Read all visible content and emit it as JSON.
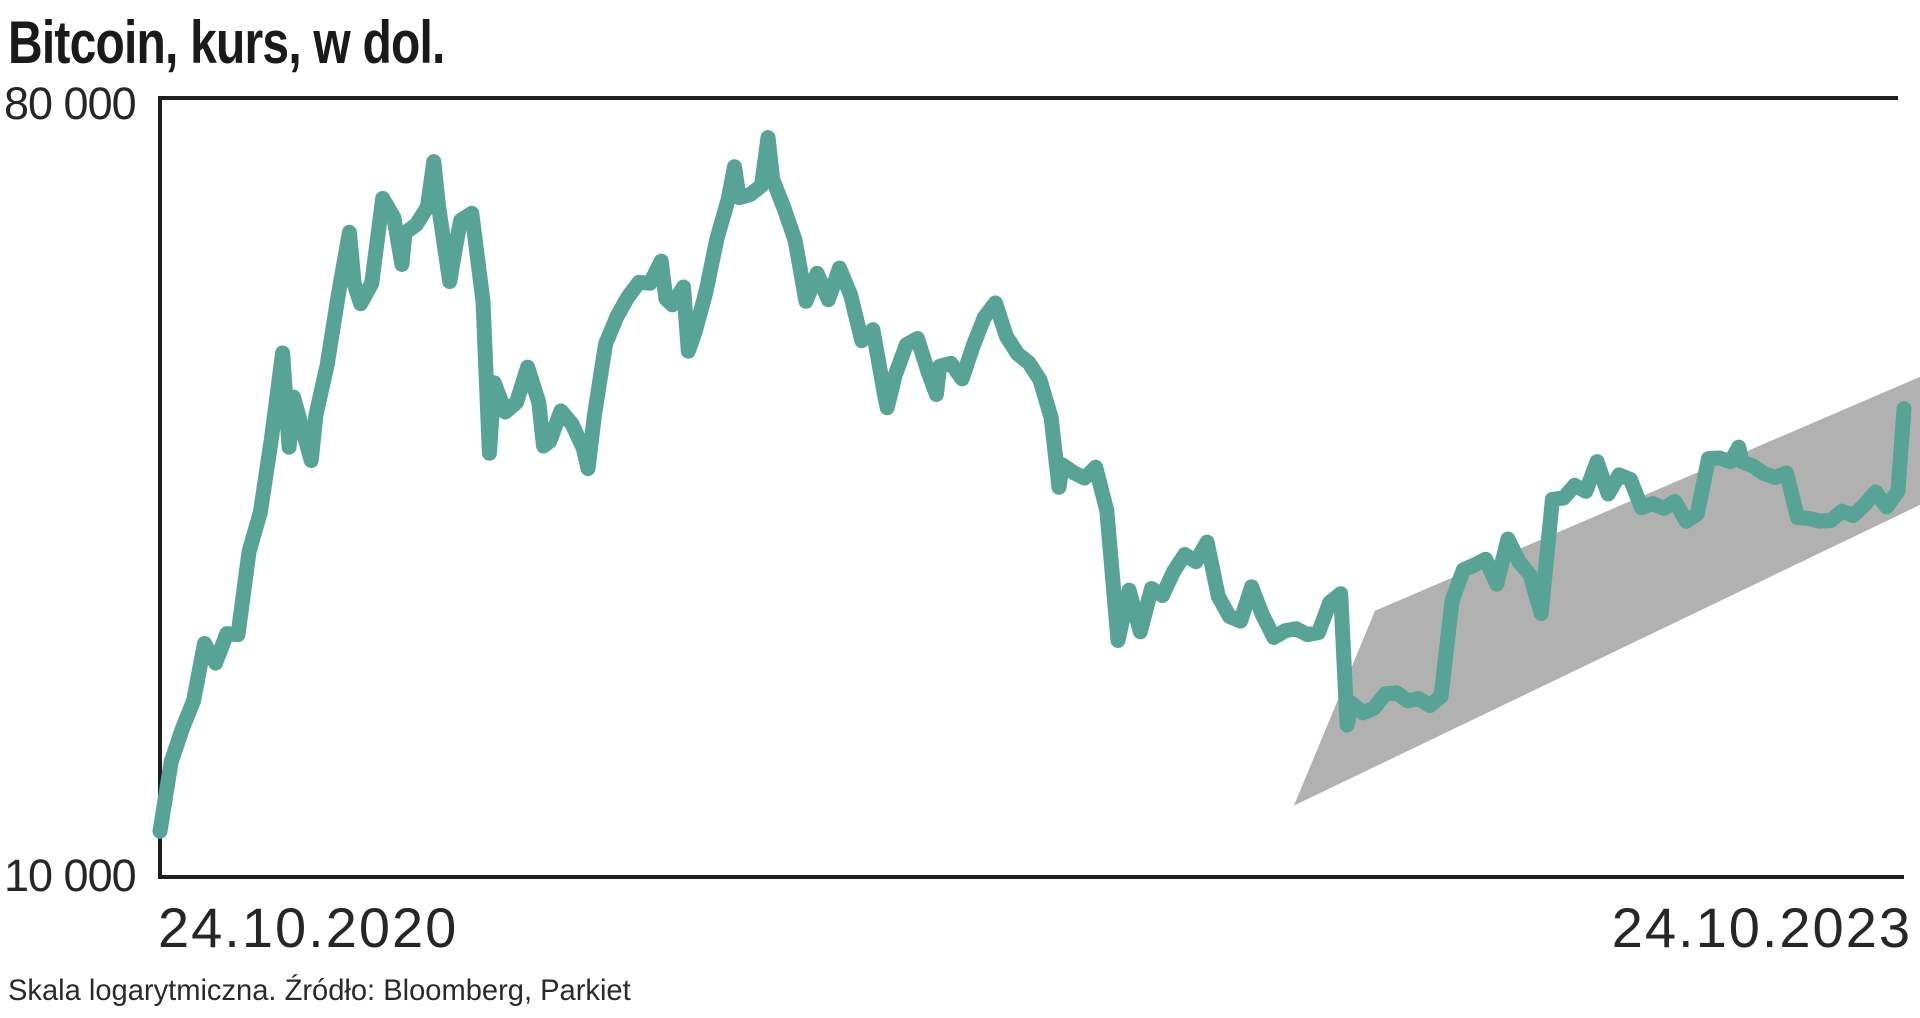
{
  "title": "Bitcoin, kurs, w dol.",
  "footer": "Skala logarytmiczna. Źródło: Bloomberg, Parkiet",
  "y_axis": {
    "top_label": "80 000",
    "bottom_label": "10 000",
    "min": 10000,
    "max": 80000,
    "scale": "log"
  },
  "x_axis": {
    "start_label": "24.10.2020",
    "end_label": "24.10.2023"
  },
  "colors": {
    "line": "#57a497",
    "channel": "#b1b1b1",
    "axis": "#1f1f1f",
    "text": "#262626"
  },
  "chart_data": {
    "type": "line",
    "title": "Bitcoin, kurs, w dol.",
    "ylabel": "USD",
    "yscale": "log",
    "ylim": [
      10000,
      80000
    ],
    "x_range": [
      "24.10.2020",
      "24.10.2023"
    ],
    "grid": false,
    "legend": "none",
    "series": [
      {
        "name": "Bitcoin price (USD)",
        "points": [
          [
            0.0,
            11300
          ],
          [
            0.0064,
            13600
          ],
          [
            0.0128,
            14850
          ],
          [
            0.0192,
            16000
          ],
          [
            0.0255,
            18650
          ],
          [
            0.0319,
            17700
          ],
          [
            0.0383,
            19150
          ],
          [
            0.0447,
            19100
          ],
          [
            0.0511,
            23850
          ],
          [
            0.0575,
            26450
          ],
          [
            0.0639,
            32200
          ],
          [
            0.0703,
            40500
          ],
          [
            0.074,
            31500
          ],
          [
            0.0766,
            36000
          ],
          [
            0.083,
            32300
          ],
          [
            0.0867,
            30400
          ],
          [
            0.0894,
            34300
          ],
          [
            0.0958,
            39200
          ],
          [
            0.1022,
            47200
          ],
          [
            0.1086,
            55900
          ],
          [
            0.1113,
            48800
          ],
          [
            0.115,
            46200
          ],
          [
            0.1214,
            48750
          ],
          [
            0.1277,
            61200
          ],
          [
            0.1341,
            58100
          ],
          [
            0.1387,
            51300
          ],
          [
            0.1405,
            55800
          ],
          [
            0.1469,
            57050
          ],
          [
            0.1533,
            59800
          ],
          [
            0.157,
            67500
          ],
          [
            0.1597,
            60000
          ],
          [
            0.1661,
            49000
          ],
          [
            0.17,
            54500
          ],
          [
            0.1724,
            57700
          ],
          [
            0.1788,
            58800
          ],
          [
            0.1852,
            46500
          ],
          [
            0.1889,
            31000
          ],
          [
            0.1916,
            37400
          ],
          [
            0.198,
            34600
          ],
          [
            0.2044,
            35500
          ],
          [
            0.2108,
            39000
          ],
          [
            0.2172,
            35500
          ],
          [
            0.2199,
            31600
          ],
          [
            0.2235,
            32000
          ],
          [
            0.2299,
            34700
          ],
          [
            0.2363,
            33500
          ],
          [
            0.2427,
            31400
          ],
          [
            0.2454,
            29750
          ],
          [
            0.2491,
            34300
          ],
          [
            0.2555,
            41500
          ],
          [
            0.2619,
            44600
          ],
          [
            0.2682,
            47000
          ],
          [
            0.2746,
            48900
          ],
          [
            0.281,
            48800
          ],
          [
            0.2874,
            51750
          ],
          [
            0.2901,
            46800
          ],
          [
            0.2938,
            46050
          ],
          [
            0.3002,
            48300
          ],
          [
            0.3029,
            40700
          ],
          [
            0.3066,
            42700
          ],
          [
            0.313,
            47650
          ],
          [
            0.3193,
            54950
          ],
          [
            0.3257,
            60900
          ],
          [
            0.3294,
            66600
          ],
          [
            0.3321,
            61300
          ],
          [
            0.3385,
            61850
          ],
          [
            0.3449,
            63300
          ],
          [
            0.3486,
            72000
          ],
          [
            0.3513,
            64400
          ],
          [
            0.3577,
            59700
          ],
          [
            0.3641,
            54750
          ],
          [
            0.3704,
            46500
          ],
          [
            0.3768,
            50100
          ],
          [
            0.3832,
            46700
          ],
          [
            0.3896,
            50800
          ],
          [
            0.396,
            47300
          ],
          [
            0.4024,
            41850
          ],
          [
            0.4088,
            43100
          ],
          [
            0.4152,
            36450
          ],
          [
            0.417,
            35000
          ],
          [
            0.4215,
            38150
          ],
          [
            0.4279,
            41400
          ],
          [
            0.4343,
            42100
          ],
          [
            0.4407,
            38350
          ],
          [
            0.4452,
            36250
          ],
          [
            0.4471,
            39100
          ],
          [
            0.4535,
            39400
          ],
          [
            0.4599,
            37800
          ],
          [
            0.4663,
            41300
          ],
          [
            0.4726,
            44500
          ],
          [
            0.479,
            46300
          ],
          [
            0.4854,
            42300
          ],
          [
            0.4918,
            40400
          ],
          [
            0.4982,
            39450
          ],
          [
            0.5046,
            37700
          ],
          [
            0.511,
            34050
          ],
          [
            0.5155,
            28300
          ],
          [
            0.5174,
            30050
          ],
          [
            0.5237,
            29450
          ],
          [
            0.5301,
            29000
          ],
          [
            0.5365,
            29850
          ],
          [
            0.5429,
            26600
          ],
          [
            0.5493,
            18800
          ],
          [
            0.5557,
            21500
          ],
          [
            0.5621,
            19250
          ],
          [
            0.5685,
            21600
          ],
          [
            0.5748,
            21200
          ],
          [
            0.5812,
            22600
          ],
          [
            0.5876,
            23650
          ],
          [
            0.594,
            23200
          ],
          [
            0.6004,
            24450
          ],
          [
            0.6068,
            21150
          ],
          [
            0.6132,
            20050
          ],
          [
            0.6196,
            19800
          ],
          [
            0.6259,
            21700
          ],
          [
            0.6323,
            20100
          ],
          [
            0.6387,
            18950
          ],
          [
            0.6451,
            19300
          ],
          [
            0.6515,
            19400
          ],
          [
            0.6579,
            19100
          ],
          [
            0.6643,
            19200
          ],
          [
            0.6707,
            20800
          ],
          [
            0.677,
            21300
          ],
          [
            0.6807,
            15000
          ],
          [
            0.6834,
            15900
          ],
          [
            0.6898,
            15500
          ],
          [
            0.6962,
            15700
          ],
          [
            0.7026,
            16300
          ],
          [
            0.709,
            16350
          ],
          [
            0.7154,
            16000
          ],
          [
            0.7218,
            16100
          ],
          [
            0.7281,
            15800
          ],
          [
            0.7345,
            16200
          ],
          [
            0.7409,
            20900
          ],
          [
            0.7473,
            22700
          ],
          [
            0.7537,
            23000
          ],
          [
            0.7601,
            23350
          ],
          [
            0.7665,
            21850
          ],
          [
            0.7729,
            24650
          ],
          [
            0.7793,
            23200
          ],
          [
            0.7856,
            22400
          ],
          [
            0.792,
            20200
          ],
          [
            0.7984,
            27400
          ],
          [
            0.8048,
            27500
          ],
          [
            0.8112,
            28450
          ],
          [
            0.8176,
            28000
          ],
          [
            0.824,
            30300
          ],
          [
            0.8304,
            27800
          ],
          [
            0.8367,
            29250
          ],
          [
            0.8431,
            28900
          ],
          [
            0.8495,
            26800
          ],
          [
            0.8559,
            27100
          ],
          [
            0.8623,
            26750
          ],
          [
            0.8687,
            27250
          ],
          [
            0.8751,
            25850
          ],
          [
            0.8815,
            26350
          ],
          [
            0.8879,
            30550
          ],
          [
            0.8942,
            30600
          ],
          [
            0.9006,
            30300
          ],
          [
            0.9052,
            31500
          ],
          [
            0.907,
            30300
          ],
          [
            0.9134,
            29950
          ],
          [
            0.9198,
            29350
          ],
          [
            0.9262,
            29050
          ],
          [
            0.9326,
            29400
          ],
          [
            0.939,
            26100
          ],
          [
            0.9453,
            26050
          ],
          [
            0.9517,
            25850
          ],
          [
            0.9581,
            25900
          ],
          [
            0.9645,
            26550
          ],
          [
            0.9709,
            26250
          ],
          [
            0.9773,
            27000
          ],
          [
            0.9837,
            27950
          ],
          [
            0.9901,
            26850
          ],
          [
            0.9965,
            28000
          ],
          [
            1.0,
            34900
          ]
        ]
      }
    ],
    "annotations": {
      "trend_channel": {
        "shape": "polygon",
        "points": [
          [
            0.6502,
            12100
          ],
          [
            0.6967,
            20350
          ],
          [
            1.0092,
            38000
          ],
          [
            1.0092,
            27000
          ]
        ]
      }
    }
  }
}
